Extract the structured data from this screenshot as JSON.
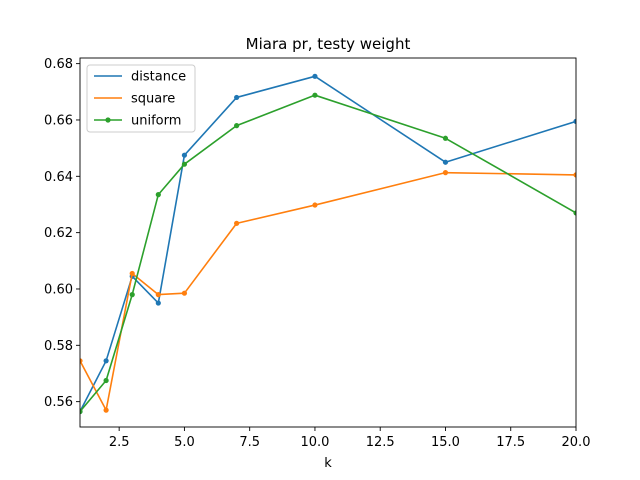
{
  "chart_data": {
    "type": "line",
    "title": "Miara pr, testy weight",
    "xlabel": "k",
    "ylabel": "",
    "xlim": [
      1,
      20
    ],
    "ylim": [
      0.551,
      0.682
    ],
    "xticks": [
      2.5,
      5.0,
      7.5,
      10.0,
      12.5,
      15.0,
      17.5,
      20.0
    ],
    "xtick_labels": [
      "2.5",
      "5.0",
      "7.5",
      "10.0",
      "12.5",
      "15.0",
      "17.5",
      "20.0"
    ],
    "yticks": [
      0.56,
      0.58,
      0.6,
      0.62,
      0.64,
      0.66,
      0.68
    ],
    "ytick_labels": [
      "0.56",
      "0.58",
      "0.60",
      "0.62",
      "0.64",
      "0.66",
      "0.68"
    ],
    "grid": false,
    "legend_position": "top-left",
    "x": [
      1,
      2,
      3,
      4,
      5,
      7,
      10,
      15,
      20
    ],
    "series": [
      {
        "name": "distance",
        "color": "#1f77b4",
        "values": [
          0.5565,
          0.5745,
          0.6045,
          0.595,
          0.6475,
          0.668,
          0.6755,
          0.645,
          0.6595
        ]
      },
      {
        "name": "square",
        "color": "#ff7f0e",
        "values": [
          0.5745,
          0.557,
          0.6055,
          0.598,
          0.5985,
          0.6233,
          0.6298,
          0.6413,
          0.6405
        ]
      },
      {
        "name": "uniform",
        "color": "#2ca02c",
        "values": [
          0.5565,
          0.5675,
          0.598,
          0.6335,
          0.6443,
          0.658,
          0.6688,
          0.6535,
          0.627
        ]
      }
    ]
  }
}
